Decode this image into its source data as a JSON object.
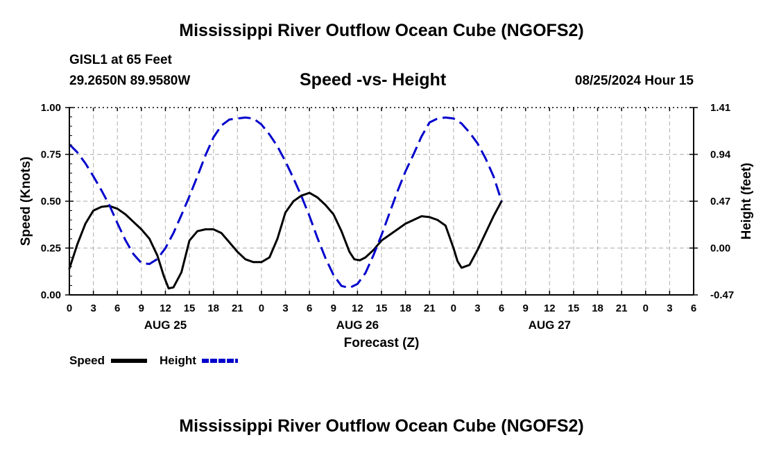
{
  "page": {
    "title_top": "Mississippi River Outflow Ocean Cube (NGOFS2)",
    "title_bottom": "Mississippi River Outflow Ocean Cube (NGOFS2)",
    "station": "GISL1 at 65 Feet",
    "coords": "29.2650N  89.9580W",
    "datetime": "08/25/2024 Hour 15"
  },
  "chart_data": {
    "type": "line",
    "title": "Speed -vs- Height",
    "xlabel": "Forecast (Z)",
    "ylabel_left": "Speed (Knots)",
    "ylabel_right": "Height (feet)",
    "x_range_hours": [
      0,
      78
    ],
    "x_tick_hours": [
      0,
      3,
      6,
      9,
      12,
      15,
      18,
      21,
      24,
      27,
      30,
      33,
      36,
      39,
      42,
      45,
      48,
      51,
      54,
      57,
      60,
      63,
      66,
      69,
      72,
      75,
      78
    ],
    "x_tick_labels": [
      "0",
      "3",
      "6",
      "9",
      "12",
      "15",
      "18",
      "21",
      "0",
      "3",
      "6",
      "9",
      "12",
      "15",
      "18",
      "21",
      "0",
      "3",
      "6",
      "9",
      "12",
      "15",
      "18",
      "21",
      "0",
      "3",
      "6"
    ],
    "date_labels": [
      {
        "label": "AUG 25",
        "hour": 12
      },
      {
        "label": "AUG 26",
        "hour": 36
      },
      {
        "label": "AUG 27",
        "hour": 60
      }
    ],
    "ylim_left": [
      0,
      1.0
    ],
    "yticks_left": [
      "0.00",
      "0.25",
      "0.50",
      "0.75",
      "1.00"
    ],
    "yticks_left_values": [
      0,
      0.25,
      0.5,
      0.75,
      1.0
    ],
    "ylim_right": [
      -0.47,
      1.41
    ],
    "yticks_right": [
      "-0.47",
      "0.00",
      "0.47",
      "0.94",
      "1.41"
    ],
    "yticks_right_values": [
      -0.47,
      0,
      0.47,
      0.94,
      1.41
    ],
    "grid": true,
    "legend": "bottom-left",
    "series": [
      {
        "name": "Speed",
        "axis": "left",
        "color": "#000000",
        "style": "solid",
        "x": [
          0,
          1,
          2,
          3,
          4,
          5,
          6,
          7,
          8,
          9,
          10,
          11,
          11.8,
          12.4,
          13,
          14,
          15,
          16,
          17,
          18,
          19,
          20,
          21,
          22,
          23,
          24,
          25,
          26,
          27,
          28,
          29,
          30,
          31,
          32,
          33,
          34,
          35,
          35.6,
          36.3,
          37,
          38,
          39,
          40,
          41,
          42,
          43,
          44,
          45,
          46,
          47,
          48,
          48.5,
          49,
          50,
          51,
          52,
          53,
          54
        ],
        "values": [
          0.14,
          0.27,
          0.38,
          0.45,
          0.47,
          0.475,
          0.46,
          0.43,
          0.39,
          0.35,
          0.3,
          0.21,
          0.1,
          0.035,
          0.04,
          0.12,
          0.29,
          0.34,
          0.35,
          0.35,
          0.33,
          0.28,
          0.23,
          0.19,
          0.175,
          0.175,
          0.2,
          0.3,
          0.44,
          0.5,
          0.53,
          0.545,
          0.52,
          0.48,
          0.43,
          0.34,
          0.23,
          0.19,
          0.185,
          0.2,
          0.24,
          0.29,
          0.32,
          0.35,
          0.38,
          0.4,
          0.42,
          0.415,
          0.4,
          0.37,
          0.25,
          0.18,
          0.145,
          0.16,
          0.24,
          0.33,
          0.42,
          0.5
        ]
      },
      {
        "name": "Height",
        "axis": "right",
        "color": "#0000cc",
        "style": "dashed",
        "x": [
          0,
          1,
          2,
          3,
          4,
          5,
          6,
          7,
          8,
          9,
          10,
          11,
          12,
          13,
          14,
          15,
          16,
          17,
          18,
          19,
          20,
          21,
          22,
          23,
          24,
          25,
          26,
          27,
          28,
          29,
          30,
          31,
          32,
          33,
          34,
          35,
          36,
          37,
          38,
          39,
          40,
          41,
          42,
          43,
          44,
          45,
          46,
          47,
          48,
          49,
          50,
          51,
          52,
          53,
          54
        ],
        "values": [
          1.04,
          0.96,
          0.85,
          0.72,
          0.58,
          0.43,
          0.25,
          0.08,
          -0.06,
          -0.15,
          -0.16,
          -0.11,
          0.0,
          0.15,
          0.33,
          0.52,
          0.72,
          0.93,
          1.11,
          1.23,
          1.29,
          1.3,
          1.31,
          1.3,
          1.24,
          1.14,
          1.02,
          0.87,
          0.7,
          0.52,
          0.32,
          0.1,
          -0.1,
          -0.27,
          -0.38,
          -0.4,
          -0.36,
          -0.25,
          -0.07,
          0.13,
          0.35,
          0.57,
          0.77,
          0.94,
          1.12,
          1.26,
          1.3,
          1.31,
          1.3,
          1.25,
          1.16,
          1.05,
          0.9,
          0.72,
          0.47
        ]
      }
    ]
  }
}
